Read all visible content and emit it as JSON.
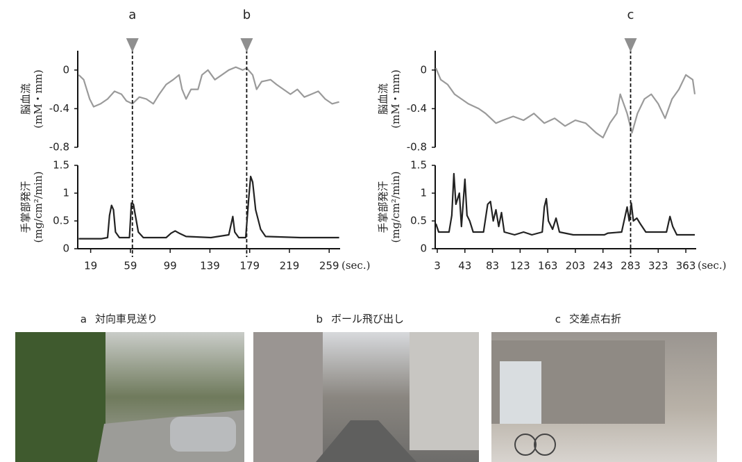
{
  "chart_data": [
    {
      "type": "line",
      "ylabel": [
        "脳血流",
        "(mM・mm)"
      ],
      "color": "#9a9a9a",
      "xlim": [
        6,
        270
      ],
      "ylim": [
        -0.8,
        0.2
      ],
      "yticks": [
        0,
        -0.4,
        -0.8
      ],
      "x": [
        7,
        12,
        18,
        22,
        29,
        36,
        43,
        50,
        55,
        61,
        68,
        75,
        82,
        88,
        95,
        102,
        108,
        111,
        115,
        120,
        127,
        131,
        137,
        144,
        151,
        158,
        165,
        172,
        176,
        182,
        186,
        191,
        200,
        206,
        213,
        220,
        227,
        234,
        241,
        248,
        255,
        262,
        269
      ],
      "values": [
        -0.05,
        -0.1,
        -0.3,
        -0.38,
        -0.35,
        -0.3,
        -0.22,
        -0.25,
        -0.32,
        -0.35,
        -0.28,
        -0.3,
        -0.35,
        -0.25,
        -0.15,
        -0.1,
        -0.05,
        -0.2,
        -0.3,
        -0.2,
        -0.2,
        -0.05,
        0,
        -0.1,
        -0.05,
        0,
        0.03,
        0,
        0.02,
        -0.05,
        -0.2,
        -0.12,
        -0.1,
        -0.15,
        -0.2,
        -0.25,
        -0.2,
        -0.28,
        -0.25,
        -0.22,
        -0.3,
        -0.35,
        -0.33
      ],
      "markers": [
        {
          "label": "a",
          "x": 61
        },
        {
          "label": "b",
          "x": 176
        }
      ]
    },
    {
      "type": "line",
      "ylabel": [
        "手掌部発汗",
        "(mg/cm²/min)"
      ],
      "color": "#222222",
      "xlim": [
        6,
        270
      ],
      "ylim": [
        0,
        1.5
      ],
      "yticks": [
        0,
        0.5,
        1,
        1.5
      ],
      "xticks": [
        19,
        59,
        99,
        139,
        179,
        219,
        259
      ],
      "xlabel": "(sec.)",
      "x": [
        7,
        30,
        36,
        38,
        40,
        42,
        44,
        48,
        58,
        60,
        62,
        64,
        67,
        72,
        95,
        100,
        104,
        108,
        115,
        140,
        158,
        162,
        164,
        168,
        175,
        178,
        180,
        182,
        185,
        190,
        195,
        230,
        269
      ],
      "values": [
        0.18,
        0.18,
        0.2,
        0.6,
        0.78,
        0.7,
        0.3,
        0.2,
        0.2,
        0.82,
        0.8,
        0.6,
        0.3,
        0.2,
        0.2,
        0.28,
        0.32,
        0.28,
        0.22,
        0.2,
        0.25,
        0.58,
        0.3,
        0.2,
        0.2,
        0.9,
        1.3,
        1.2,
        0.7,
        0.35,
        0.22,
        0.2,
        0.2
      ]
    },
    {
      "type": "line",
      "ylabel": [
        "脳血流",
        "(mM・mm)"
      ],
      "color": "#9a9a9a",
      "xlim": [
        0,
        378
      ],
      "ylim": [
        -0.8,
        0.2
      ],
      "yticks": [
        0,
        -0.4,
        -0.8
      ],
      "x": [
        1,
        8,
        18,
        28,
        38,
        48,
        63,
        73,
        88,
        98,
        113,
        128,
        143,
        158,
        173,
        188,
        203,
        218,
        233,
        243,
        253,
        263,
        268,
        278,
        285,
        293,
        303,
        313,
        323,
        333,
        343,
        353,
        363,
        373,
        376
      ],
      "values": [
        0.02,
        -0.1,
        -0.15,
        -0.25,
        -0.3,
        -0.35,
        -0.4,
        -0.45,
        -0.55,
        -0.52,
        -0.48,
        -0.52,
        -0.45,
        -0.55,
        -0.5,
        -0.58,
        -0.52,
        -0.55,
        -0.65,
        -0.7,
        -0.55,
        -0.45,
        -0.25,
        -0.45,
        -0.65,
        -0.45,
        -0.3,
        -0.25,
        -0.35,
        -0.5,
        -0.3,
        -0.2,
        -0.05,
        -0.1,
        -0.25
      ],
      "markers": [
        {
          "label": "c",
          "x": 283
        }
      ]
    },
    {
      "type": "line",
      "ylabel": [
        "手掌部発汗",
        "(mg/cm²/min)"
      ],
      "color": "#222222",
      "xlim": [
        0,
        378
      ],
      "ylim": [
        0,
        1.5
      ],
      "yticks": [
        0,
        0.5,
        1,
        1.5
      ],
      "xticks": [
        3,
        43,
        83,
        123,
        163,
        203,
        243,
        283,
        323,
        363
      ],
      "xlabel": "(sec.)",
      "x": [
        1,
        5,
        20,
        24,
        27,
        30,
        35,
        38,
        43,
        46,
        50,
        55,
        70,
        76,
        80,
        84,
        88,
        92,
        96,
        100,
        115,
        128,
        140,
        155,
        158,
        161,
        164,
        170,
        175,
        180,
        200,
        245,
        250,
        270,
        278,
        281,
        284,
        287,
        292,
        297,
        305,
        335,
        340,
        344,
        350,
        376
      ],
      "values": [
        0.45,
        0.3,
        0.3,
        0.6,
        1.35,
        0.8,
        1.0,
        0.4,
        1.25,
        0.6,
        0.5,
        0.3,
        0.3,
        0.8,
        0.85,
        0.5,
        0.7,
        0.4,
        0.65,
        0.3,
        0.25,
        0.3,
        0.25,
        0.3,
        0.75,
        0.9,
        0.5,
        0.35,
        0.55,
        0.3,
        0.25,
        0.25,
        0.28,
        0.3,
        0.75,
        0.5,
        0.82,
        0.5,
        0.55,
        0.45,
        0.3,
        0.3,
        0.58,
        0.4,
        0.25,
        0.25
      ]
    }
  ],
  "photos": [
    {
      "label": "a",
      "caption": "対向車見送り"
    },
    {
      "label": "b",
      "caption": "ボール飛び出し"
    },
    {
      "label": "c",
      "caption": "交差点右折"
    }
  ]
}
